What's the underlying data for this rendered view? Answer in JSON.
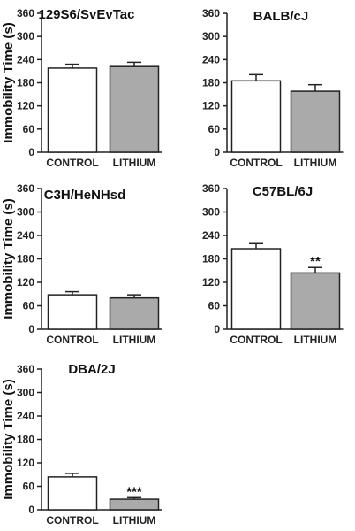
{
  "figure": {
    "ylabel": "Immobility Time (s)"
  },
  "chart_data": [
    {
      "type": "bar",
      "title": "129S6/SvEvTac",
      "categories": [
        "CONTROL",
        "LITHIUM"
      ],
      "values": [
        218,
        222
      ],
      "errors": [
        10,
        11
      ],
      "significance": [
        "",
        ""
      ],
      "ylabel": "Immobility Time (s)",
      "ylim": [
        0,
        360
      ],
      "yticks": [
        0,
        60,
        120,
        180,
        240,
        300,
        360
      ],
      "colors": [
        "#ffffff",
        "#aaaaaa"
      ]
    },
    {
      "type": "bar",
      "title": "BALB/cJ",
      "categories": [
        "CONTROL",
        "LITHIUM"
      ],
      "values": [
        185,
        158
      ],
      "errors": [
        16,
        17
      ],
      "significance": [
        "",
        ""
      ],
      "ylabel": "",
      "ylim": [
        0,
        360
      ],
      "yticks": [
        0,
        60,
        120,
        180,
        240,
        300,
        360
      ],
      "colors": [
        "#ffffff",
        "#aaaaaa"
      ]
    },
    {
      "type": "bar",
      "title": "C3H/HeNHsd",
      "categories": [
        "CONTROL",
        "LITHIUM"
      ],
      "values": [
        88,
        80
      ],
      "errors": [
        8,
        8
      ],
      "significance": [
        "",
        ""
      ],
      "ylabel": "Immobility Time (s)",
      "ylim": [
        0,
        360
      ],
      "yticks": [
        0,
        60,
        120,
        180,
        240,
        300,
        360
      ],
      "colors": [
        "#ffffff",
        "#aaaaaa"
      ]
    },
    {
      "type": "bar",
      "title": "C57BL/6J",
      "categories": [
        "CONTROL",
        "LITHIUM"
      ],
      "values": [
        206,
        144
      ],
      "errors": [
        13,
        14
      ],
      "significance": [
        "",
        "**"
      ],
      "ylabel": "",
      "ylim": [
        0,
        360
      ],
      "yticks": [
        0,
        60,
        120,
        180,
        240,
        300,
        360
      ],
      "colors": [
        "#ffffff",
        "#aaaaaa"
      ]
    },
    {
      "type": "bar",
      "title": "DBA/2J",
      "categories": [
        "CONTROL",
        "LITHIUM"
      ],
      "values": [
        84,
        27
      ],
      "errors": [
        9,
        4
      ],
      "significance": [
        "",
        "***"
      ],
      "ylabel": "Immobility Time (s)",
      "ylim": [
        0,
        360
      ],
      "yticks": [
        0,
        60,
        120,
        180,
        240,
        300,
        360
      ],
      "colors": [
        "#ffffff",
        "#aaaaaa"
      ]
    }
  ]
}
